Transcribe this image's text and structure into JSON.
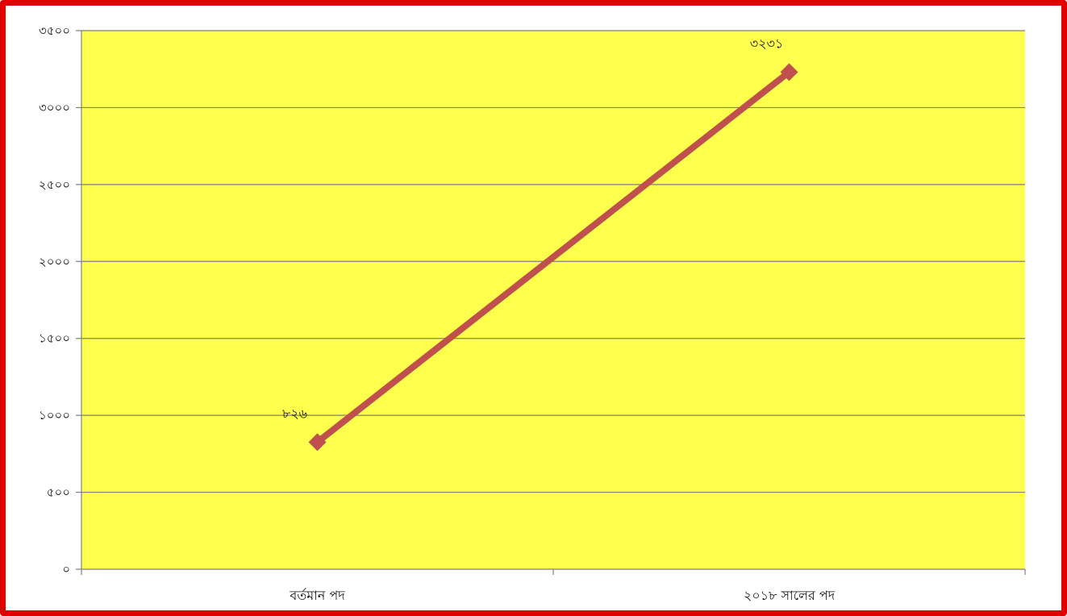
{
  "chart_data": {
    "type": "line",
    "categories": [
      "বর্তমান পদ",
      "২০১৮ সালের পদ"
    ],
    "series": [
      {
        "values": [
          826,
          3231
        ],
        "data_labels": [
          "৮২৬",
          "৩২৩১"
        ],
        "color": "#c0504d"
      }
    ],
    "y_ticks": [
      0,
      500,
      1000,
      1500,
      2000,
      2500,
      3000,
      3500
    ],
    "y_tick_labels": [
      "০",
      "৫০০",
      "১০০০",
      "১৫০০",
      "২০০০",
      "২৫০০",
      "৩০০০",
      "৩৫০০"
    ],
    "ylim": [
      0,
      3500
    ],
    "grid": true,
    "legend": "none",
    "plot_background": "#ffff4d",
    "frame_color": "#e00000"
  }
}
